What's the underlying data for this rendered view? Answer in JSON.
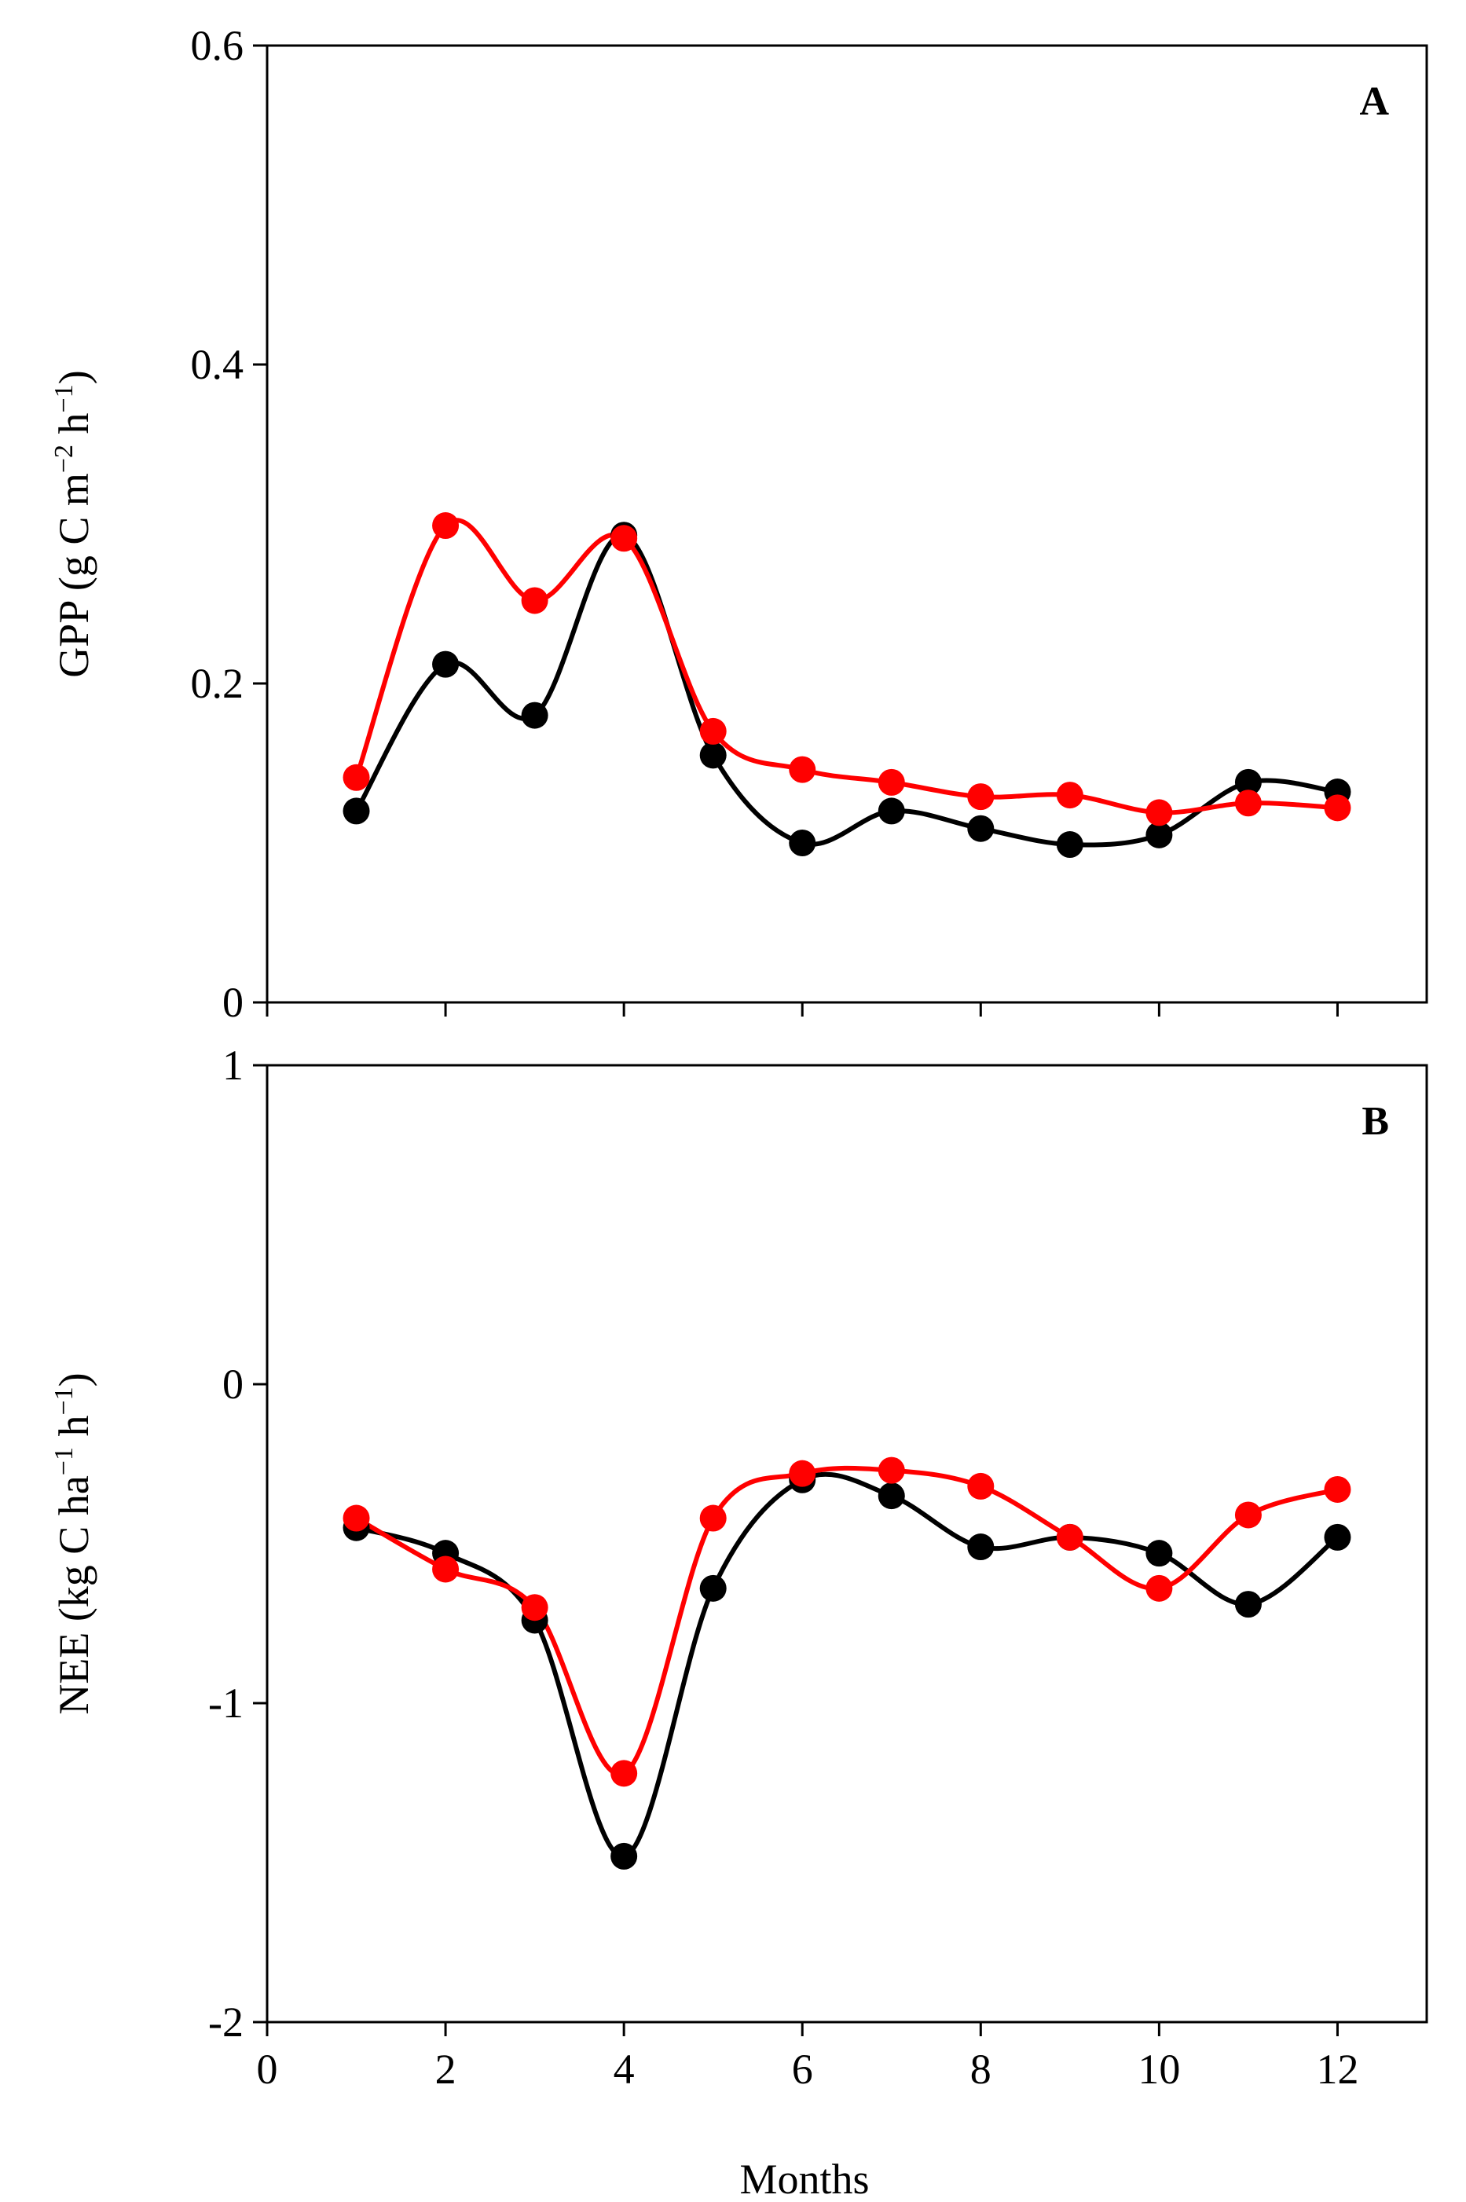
{
  "chart_data": [
    {
      "type": "line",
      "panel_label": "A",
      "ylabel_main": "GPP (g C m",
      "ylabel_sup1": "−2",
      "ylabel_mid": " h",
      "ylabel_sup2": "−1",
      "ylabel_end": ")",
      "xlabel": "",
      "ylim": [
        0,
        0.6
      ],
      "yticks": [
        0,
        0.2,
        0.4,
        0.6
      ],
      "ytick_labels": [
        "0",
        "0.2",
        "0.4",
        "0.6"
      ],
      "xlim": [
        0,
        13
      ],
      "grid": false,
      "x": [
        1,
        2,
        3,
        4,
        5,
        6,
        7,
        8,
        9,
        10,
        11,
        12
      ],
      "series": [
        {
          "name": "black series",
          "color": "#000000",
          "values": [
            0.12,
            0.212,
            0.18,
            0.293,
            0.155,
            0.1,
            0.12,
            0.109,
            0.099,
            0.105,
            0.138,
            0.132
          ]
        },
        {
          "name": "red series",
          "color": "#ff0000",
          "values": [
            0.141,
            0.299,
            0.252,
            0.291,
            0.17,
            0.146,
            0.138,
            0.129,
            0.13,
            0.119,
            0.125,
            0.122
          ]
        }
      ]
    },
    {
      "type": "line",
      "panel_label": "B",
      "ylabel_main": "NEE (kg C ha",
      "ylabel_sup1": "−1",
      "ylabel_mid": " h",
      "ylabel_sup2": "−1",
      "ylabel_end": ")",
      "xlabel": "Months",
      "ylim": [
        -2,
        1
      ],
      "yticks": [
        -2,
        -1,
        0,
        1
      ],
      "ytick_labels": [
        "-2",
        "-1",
        "0",
        "1"
      ],
      "xlim": [
        0,
        13
      ],
      "xticks": [
        0,
        2,
        4,
        6,
        8,
        10,
        12
      ],
      "xtick_labels": [
        "0",
        "2",
        "4",
        "6",
        "8",
        "10",
        "12"
      ],
      "grid": false,
      "x": [
        1,
        2,
        3,
        4,
        5,
        6,
        7,
        8,
        9,
        10,
        11,
        12
      ],
      "series": [
        {
          "name": "black series",
          "color": "#000000",
          "values": [
            -0.45,
            -0.53,
            -0.74,
            -1.48,
            -0.64,
            -0.3,
            -0.35,
            -0.51,
            -0.48,
            -0.53,
            -0.69,
            -0.48
          ]
        },
        {
          "name": "red series",
          "color": "#ff0000",
          "values": [
            -0.42,
            -0.58,
            -0.7,
            -1.22,
            -0.42,
            -0.28,
            -0.27,
            -0.32,
            -0.48,
            -0.64,
            -0.41,
            -0.33
          ]
        }
      ]
    }
  ]
}
